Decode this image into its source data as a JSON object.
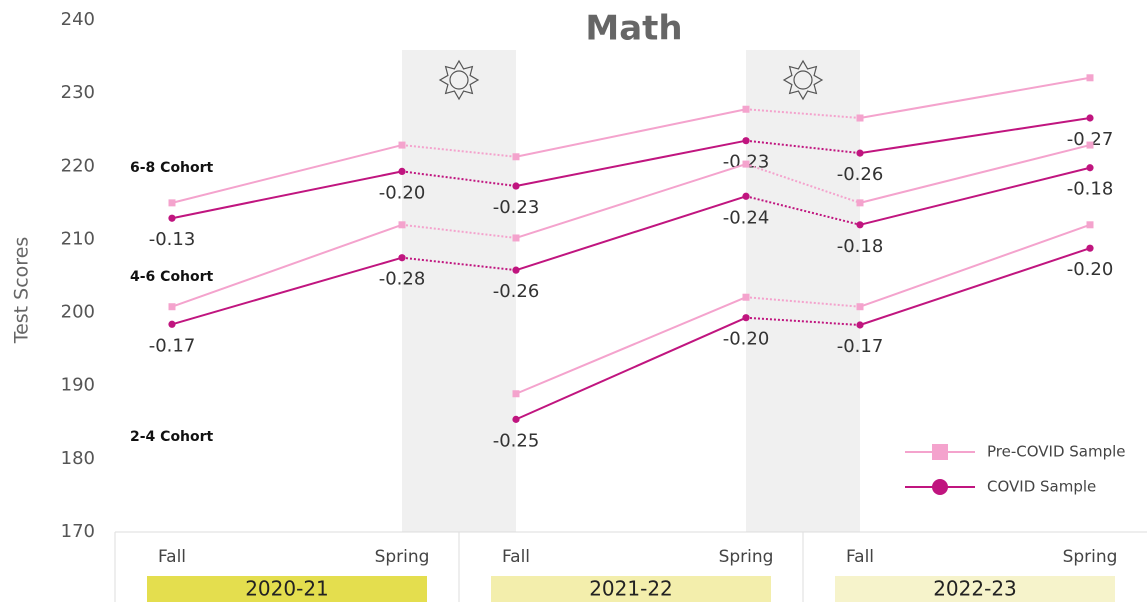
{
  "chart_data": {
    "type": "line",
    "title": "Math",
    "y_label": "Test Scores",
    "ylim": [
      170,
      240
    ],
    "yticks": [
      170,
      180,
      190,
      200,
      210,
      220,
      230,
      240
    ],
    "categories": [
      "Fall",
      "Spring",
      "Fall",
      "Spring",
      "Fall",
      "Spring"
    ],
    "years": [
      "2020-21",
      "2021-22",
      "2022-23"
    ],
    "year_colors": [
      "#e4de4e",
      "#f3eeac",
      "#f6f3cb"
    ],
    "series": [
      {
        "name": "Pre-COVID Sample",
        "color": "#f4a3cd",
        "marker": "square"
      },
      {
        "name": "COVID Sample",
        "color": "#c0157f",
        "marker": "circle"
      }
    ],
    "cohorts": [
      {
        "name": "6-8 Cohort",
        "values": [
          [
            215,
            222.9,
            221.3,
            227.8,
            226.6,
            232.1
          ],
          [
            212.9,
            219.3,
            217.3,
            223.5,
            221.8,
            226.6
          ]
        ],
        "effect_labels": [
          "-0.13",
          "-0.20",
          "-0.23",
          "-0.23",
          "-0.26",
          "-0.27"
        ]
      },
      {
        "name": "4-6 Cohort",
        "values": [
          [
            200.8,
            212,
            210.2,
            220.3,
            215,
            222.9
          ],
          [
            198.4,
            207.5,
            205.8,
            215.9,
            212,
            219.8
          ]
        ],
        "effect_labels": [
          "-0.17",
          "-0.28",
          "-0.26",
          "-0.24",
          "-0.18",
          "-0.18"
        ]
      },
      {
        "name": "2-4 Cohort",
        "values": [
          [
            null,
            null,
            188.9,
            202.1,
            200.8,
            212
          ],
          [
            null,
            null,
            185.4,
            199.3,
            198.3,
            208.8
          ]
        ],
        "effect_labels": [
          null,
          null,
          "-0.25",
          "-0.20",
          "-0.17",
          "-0.20"
        ]
      }
    ]
  }
}
